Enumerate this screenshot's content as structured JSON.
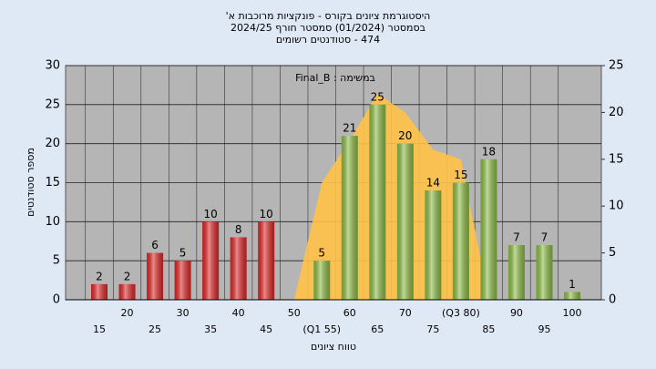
{
  "chart_data": {
    "type": "bar",
    "title_lines": [
      "היסטוגרמת ציונים בקורס - פונקציות מרוכבות א'",
      "בסמסטר (01/2024) סמסטר חורף 2024/25",
      "474 - סטודנטים רשומים"
    ],
    "annotation": "במשימה : Final_B",
    "x_label": "טווח ציונים",
    "y_label": "מספר סטודנטים",
    "categories": [
      "15",
      "20",
      "25",
      "30",
      "35",
      "40",
      "45",
      "50",
      "(Q1 55)",
      "60",
      "65",
      "70",
      "75",
      "(Q3 80)",
      "85",
      "90",
      "95",
      "100"
    ],
    "values": [
      2,
      2,
      6,
      5,
      10,
      8,
      10,
      0,
      5,
      21,
      25,
      20,
      14,
      15,
      18,
      7,
      7,
      1
    ],
    "colors": [
      "#e02626",
      "#e02626",
      "#e02626",
      "#e02626",
      "#e02626",
      "#e02626",
      "#e02626",
      "#e02626",
      "#8dbd45",
      "#8dbd45",
      "#8dbd45",
      "#8dbd45",
      "#8dbd45",
      "#8dbd45",
      "#8dbd45",
      "#8dbd45",
      "#8dbd45",
      "#8dbd45"
    ],
    "area": {
      "axis": "y2",
      "color": "#ffc247",
      "values": [
        null,
        null,
        null,
        null,
        null,
        null,
        null,
        0,
        12.5,
        17,
        22,
        20,
        16,
        15,
        0,
        null,
        null,
        null
      ]
    },
    "ylim": [
      0,
      30
    ],
    "yticks": [
      0,
      5,
      10,
      15,
      20,
      25,
      30
    ],
    "y2lim": [
      0,
      25
    ],
    "y2ticks": [
      0,
      5,
      10,
      15,
      20,
      25
    ],
    "grid": true
  }
}
